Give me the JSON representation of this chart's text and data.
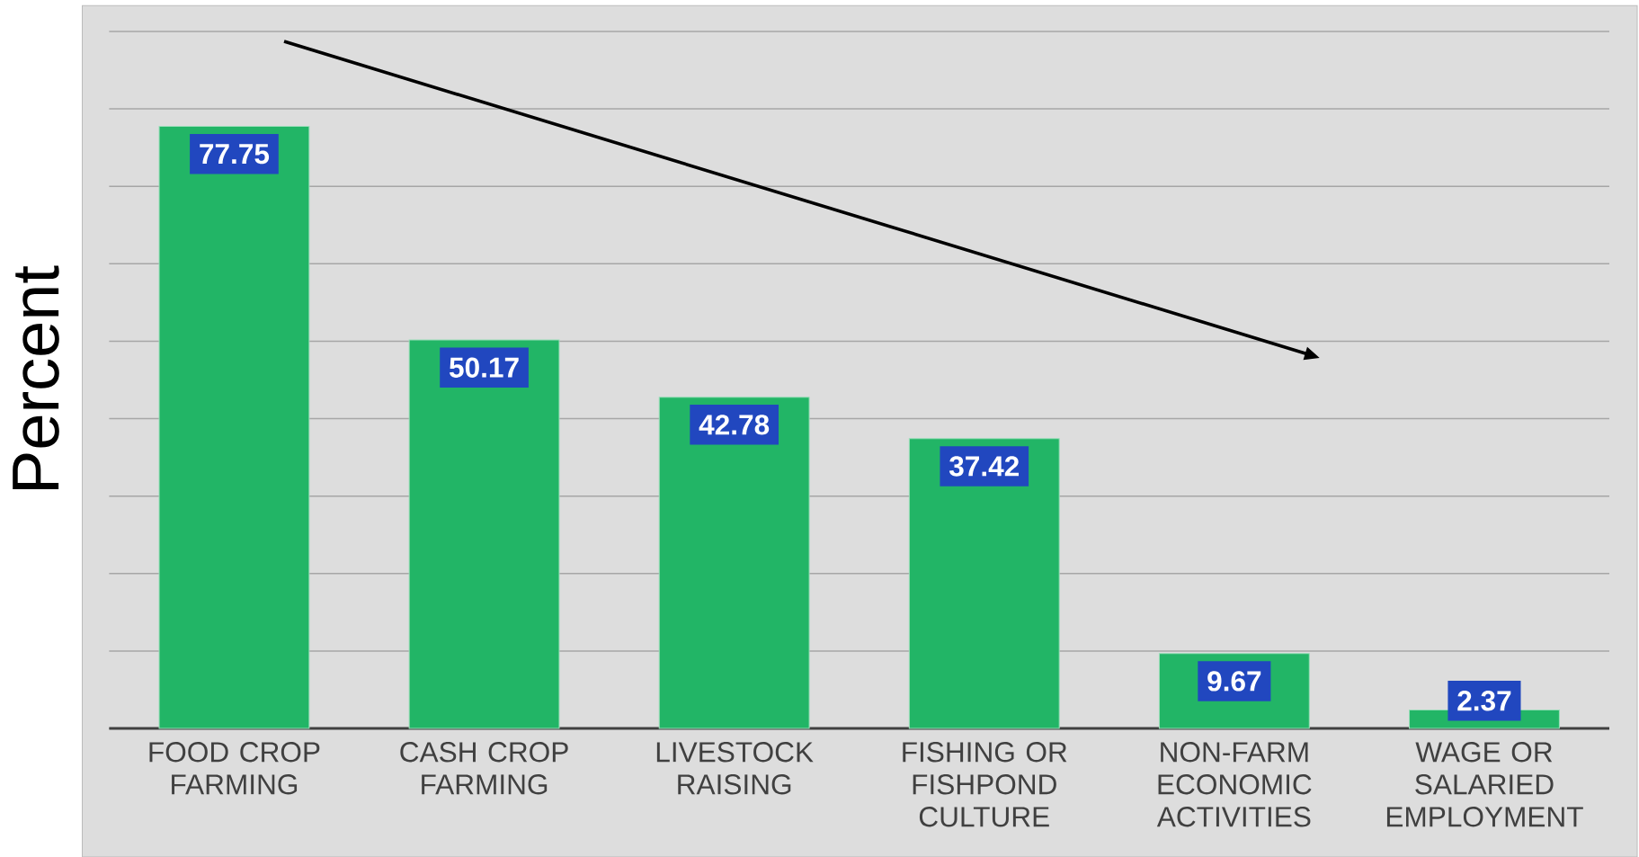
{
  "chart_data": {
    "type": "bar",
    "ylabel": "Percent",
    "categories": [
      "FOOD CROP FARMING",
      "CASH CROP FARMING",
      "LIVESTOCK RAISING",
      "FISHING OR FISHPOND CULTURE",
      "NON-FARM ECONOMIC ACTIVITIES",
      "WAGE OR SALARIED EMPLOYMENT"
    ],
    "values": [
      77.75,
      50.17,
      42.78,
      37.42,
      9.67,
      2.37
    ],
    "color": "#22b566",
    "data_labels": true,
    "ylim": [
      0,
      90
    ],
    "yticks": [
      {
        "value": 0,
        "label": null
      },
      {
        "value": 10,
        "label": null
      },
      {
        "value": 20,
        "label": null
      },
      {
        "value": 30,
        "label": null
      },
      {
        "value": 40,
        "label": null
      },
      {
        "value": 50,
        "label": null
      },
      {
        "value": 60,
        "label": null
      },
      {
        "value": 70,
        "label": null
      },
      {
        "value": 80,
        "label": null
      },
      {
        "value": 90,
        "label": null
      }
    ],
    "grid": "y",
    "tick_labels": "x"
  }
}
